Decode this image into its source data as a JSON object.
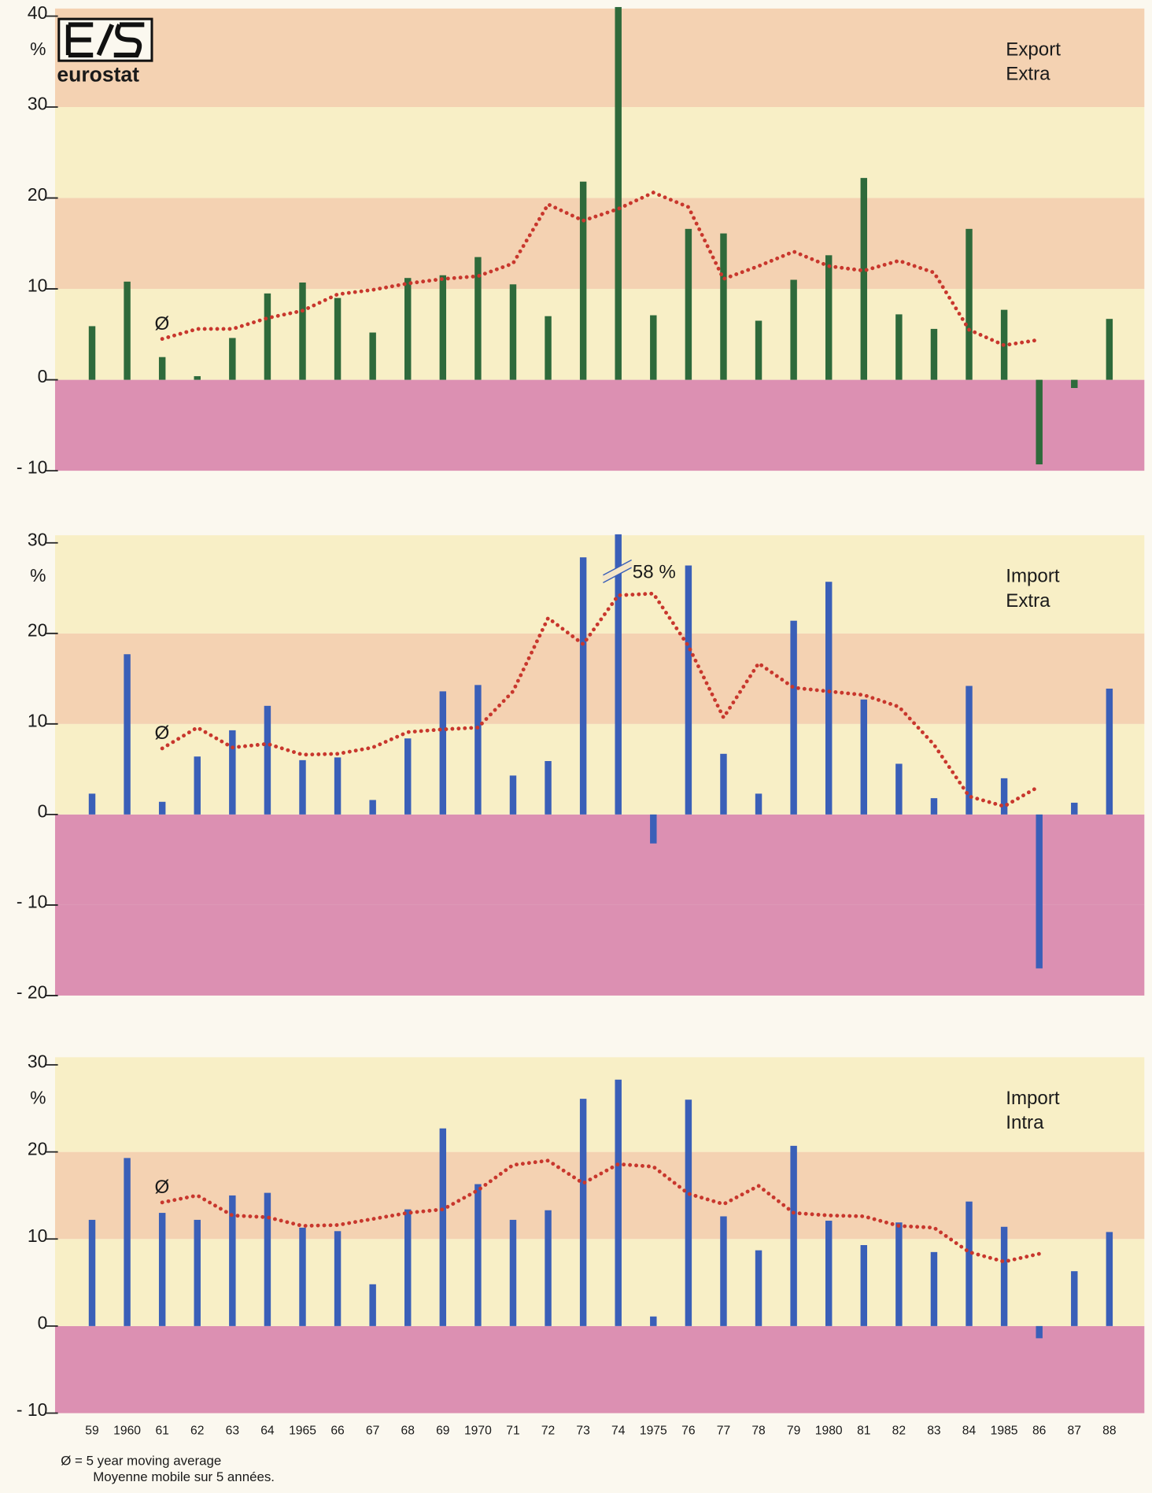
{
  "logo": "eurostat",
  "footnote": [
    "Ø = 5 year moving average",
    "Moyenne mobile sur 5 années."
  ],
  "chart_data": [
    {
      "type": "bar",
      "title_lines": [
        "Export",
        "Extra"
      ],
      "unit": "%",
      "ylim": [
        -10,
        40
      ],
      "yticks": [
        {
          "value": -10,
          "label": "- 10"
        },
        0,
        10,
        20,
        30,
        40
      ],
      "series": [
        {
          "type": "bar",
          "color": "#2e6a3b",
          "values": [
            5.9,
            10.8,
            2.5,
            0.4,
            4.6,
            9.5,
            10.7,
            9.0,
            5.2,
            11.2,
            11.5,
            13.5,
            10.5,
            7.0,
            21.8,
            41,
            7.1,
            16.6,
            16.1,
            6.5,
            11.0,
            13.7,
            22.2,
            7.2,
            5.6,
            16.6,
            7.7,
            -9.3,
            -0.9,
            6.7
          ]
        },
        {
          "type": "line",
          "name": "Ø",
          "color": "#c8372d",
          "values": [
            null,
            null,
            4.5,
            5.6,
            5.6,
            6.8,
            7.6,
            9.4,
            9.9,
            10.6,
            11.1,
            11.4,
            12.8,
            19.3,
            17.5,
            18.8,
            20.6,
            19.0,
            11.1,
            12.5,
            14.1,
            12.5,
            12.0,
            13.1,
            11.8,
            5.5,
            3.8,
            4.4,
            null,
            null
          ]
        }
      ]
    },
    {
      "type": "bar",
      "title_lines": [
        "Import",
        "Extra"
      ],
      "unit": "%",
      "ylim": [
        -20,
        30
      ],
      "yticks": [
        {
          "value": -20,
          "label": "- 20"
        },
        {
          "value": -10,
          "label": "- 10"
        },
        0,
        10,
        20,
        30
      ],
      "series": [
        {
          "type": "bar",
          "color": "#3a5fb8",
          "values": [
            2.3,
            17.7,
            1.4,
            6.4,
            9.3,
            12.0,
            6.0,
            6.3,
            1.6,
            8.4,
            13.6,
            14.3,
            4.3,
            5.9,
            28.4,
            58,
            -3.2,
            27.5,
            6.7,
            2.3,
            21.4,
            25.7,
            12.7,
            5.6,
            1.8,
            14.2,
            4.0,
            -17.0,
            1.3,
            13.9
          ],
          "value_labels": [
            null,
            null,
            null,
            null,
            null,
            null,
            null,
            null,
            null,
            null,
            null,
            null,
            null,
            null,
            null,
            "58 %",
            null,
            null,
            null,
            null,
            null,
            null,
            null,
            null,
            null,
            null,
            null,
            null,
            null,
            null
          ]
        },
        {
          "type": "line",
          "name": "Ø",
          "color": "#c8372d",
          "values": [
            null,
            null,
            7.3,
            9.6,
            7.4,
            7.8,
            6.6,
            6.7,
            7.4,
            9.1,
            9.4,
            9.6,
            13.6,
            21.7,
            18.8,
            24.2,
            24.4,
            18.6,
            10.7,
            16.7,
            14.0,
            13.6,
            13.2,
            11.9,
            7.7,
            2.0,
            0.9,
            3.1,
            null,
            null
          ]
        }
      ]
    },
    {
      "type": "bar",
      "title_lines": [
        "Import",
        "Intra"
      ],
      "unit": "%",
      "ylim": [
        -10,
        30
      ],
      "yticks": [
        {
          "value": -10,
          "label": "- 10"
        },
        0,
        10,
        20,
        30
      ],
      "categories": [
        "59",
        "1960",
        "61",
        "62",
        "63",
        "64",
        "1965",
        "66",
        "67",
        "68",
        "69",
        "1970",
        "71",
        "72",
        "73",
        "74",
        "1975",
        "76",
        "77",
        "78",
        "79",
        "1980",
        "81",
        "82",
        "83",
        "84",
        "1985",
        "86",
        "87",
        "88"
      ],
      "series": [
        {
          "type": "bar",
          "color": "#3a5fb8",
          "values": [
            12.2,
            19.3,
            13.0,
            12.2,
            15.0,
            15.3,
            11.3,
            10.9,
            4.8,
            13.4,
            22.7,
            16.3,
            12.2,
            13.3,
            26.1,
            28.3,
            1.1,
            26.0,
            12.6,
            8.7,
            20.7,
            12.1,
            9.3,
            11.9,
            8.5,
            14.3,
            11.4,
            -1.4,
            6.3,
            10.8
          ]
        },
        {
          "type": "line",
          "name": "Ø",
          "color": "#c8372d",
          "values": [
            null,
            null,
            14.2,
            15.0,
            12.7,
            12.5,
            11.5,
            11.6,
            12.3,
            13.0,
            13.4,
            15.6,
            18.5,
            19.0,
            16.4,
            18.6,
            18.3,
            15.2,
            14.0,
            16.1,
            13.0,
            12.7,
            12.6,
            11.5,
            11.3,
            8.5,
            7.4,
            8.3,
            null,
            null
          ]
        }
      ]
    }
  ]
}
